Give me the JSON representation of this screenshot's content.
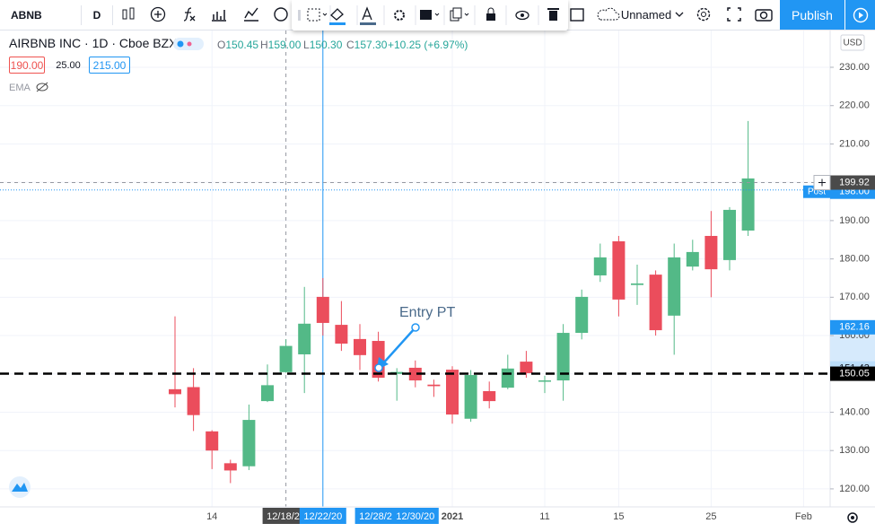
{
  "toolbar": {
    "symbol": "ABNB",
    "interval": "D",
    "layout_name": "Unnamed",
    "publish": "Publish"
  },
  "legend": {
    "title": "AIRBNB INC · 1D · Cboe BZX",
    "ohlc": [
      {
        "label": "O",
        "value": "150.45"
      },
      {
        "label": "H",
        "value": "159.00"
      },
      {
        "label": "L",
        "value": "150.30"
      },
      {
        "label": "C",
        "value": "157.30"
      }
    ],
    "change": "+10.25 (+6.97%)",
    "buttons": [
      "190.00",
      "25.00",
      "215.00"
    ],
    "indicator": "EMA"
  },
  "chart_data": {
    "type": "candlestick",
    "annotation": "Entry PT",
    "currency": "USD",
    "up_color": "#53b987",
    "down_color": "#eb4d5c",
    "grid": true,
    "categories": [
      null,
      null,
      "14",
      null,
      null,
      null,
      "12/18/20",
      null,
      "12/22/20",
      null,
      null,
      "12/28/20",
      null,
      "12/30/20",
      null,
      "2021",
      null,
      null,
      null,
      null,
      "11",
      null,
      null,
      null,
      "15",
      null,
      null,
      null,
      null,
      "25",
      null,
      null,
      null,
      null,
      "Feb"
    ],
    "open": [
      146,
      146.55,
      135,
      126.69,
      125.9,
      142.9,
      150.45,
      155.1,
      170.1,
      162.8,
      159.1,
      158.6,
      150,
      151.6,
      147.2,
      151.1,
      138.3,
      145.5,
      146.4,
      153.2,
      148.1,
      148.3,
      160.7,
      175.7,
      184.6,
      173.2,
      175.9,
      165.2,
      178,
      186,
      179.7,
      187.4,
      null,
      null,
      null
    ],
    "high": [
      165,
      151.5,
      135.3,
      127.6,
      142,
      152.45,
      159,
      172.7,
      175,
      169,
      163,
      161,
      151.5,
      153.5,
      148.5,
      152,
      151,
      148,
      155,
      156,
      149.5,
      163,
      172,
      184,
      186,
      178.5,
      177,
      184,
      185,
      192.5,
      193.5,
      216,
      null,
      null,
      null
    ],
    "low": [
      141.25,
      135.1,
      125.16,
      121.5,
      124.91,
      142.67,
      150.3,
      145,
      160,
      156,
      151,
      148,
      143,
      146.5,
      144,
      137,
      137.5,
      141,
      146,
      149,
      145,
      143,
      159,
      174,
      165,
      168,
      160,
      155,
      177,
      170,
      177,
      186,
      null,
      null,
      null
    ],
    "close": [
      144.71,
      139.25,
      130,
      124.8,
      137.99,
      147.05,
      157.3,
      163.1,
      163.3,
      157.9,
      154.9,
      149,
      150.5,
      148.3,
      146.8,
      139.4,
      149.7,
      142.9,
      151.4,
      150.2,
      148.3,
      160.7,
      170.1,
      180.4,
      169.4,
      173.6,
      161.4,
      180.4,
      181.8,
      177.3,
      192.8,
      201,
      null,
      null,
      null
    ],
    "ylim": [
      115.3,
      239.6
    ],
    "yticks": [
      {
        "value": 120,
        "label": "120.00"
      },
      {
        "value": 130,
        "label": "130.00"
      },
      {
        "value": 140,
        "label": "140.00"
      },
      {
        "value": 150,
        "label": "150.00"
      },
      {
        "value": 160,
        "label": "160.00"
      },
      {
        "value": 170,
        "label": "170.00"
      },
      {
        "value": 180,
        "label": "180.00"
      },
      {
        "value": 190,
        "label": "190.00"
      },
      {
        "value": 200,
        "label": "200.00"
      },
      {
        "value": 210,
        "label": "210.00"
      },
      {
        "value": 220,
        "label": "220.00"
      },
      {
        "value": 230,
        "label": "230.00"
      }
    ],
    "hline": {
      "value": 150.05,
      "color": "#000000"
    },
    "price_labels": [
      {
        "value": 198,
        "label": "198.00",
        "tag": "Post",
        "color": "#2196f3"
      },
      {
        "value": 199.92,
        "color": "#4a4a4a"
      },
      {
        "value": 162.16,
        "color": "#2196f3"
      },
      {
        "value": 151.43,
        "color": "#bbdefb"
      }
    ]
  }
}
